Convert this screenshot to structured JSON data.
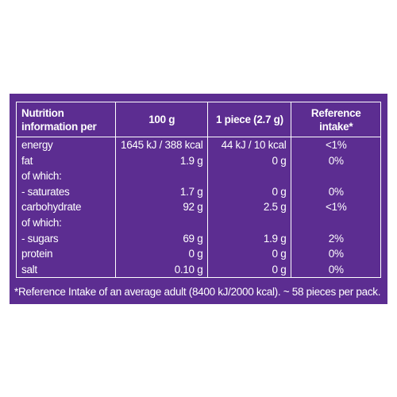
{
  "table": {
    "header": [
      [
        "Nutrition",
        "information per"
      ],
      [
        "100 g"
      ],
      [
        "1 piece (2.7 g)"
      ],
      [
        "Reference",
        "intake*"
      ]
    ],
    "rows": [
      [
        "energy",
        "1645 kJ / 388 kcal",
        "44 kJ / 10 kcal",
        "<1%"
      ],
      [
        "fat",
        "1.9 g",
        "0 g",
        "0%"
      ],
      [
        "of which:"
      ],
      [
        "- saturates",
        "1.7 g",
        "0 g",
        "0%"
      ],
      [
        "carbohydrate",
        "92 g",
        "2.5 g",
        "<1%"
      ],
      [
        "of which:"
      ],
      [
        "- sugars",
        "69 g",
        "1.9 g",
        "2%"
      ],
      [
        "protein",
        "0 g",
        "0 g",
        "0%"
      ],
      [
        "salt",
        "0.10 g",
        "0 g",
        "0%"
      ]
    ]
  },
  "footnote": "*Reference Intake of an average adult (8400 kJ/2000 kcal). ~ 58 pieces per pack."
}
